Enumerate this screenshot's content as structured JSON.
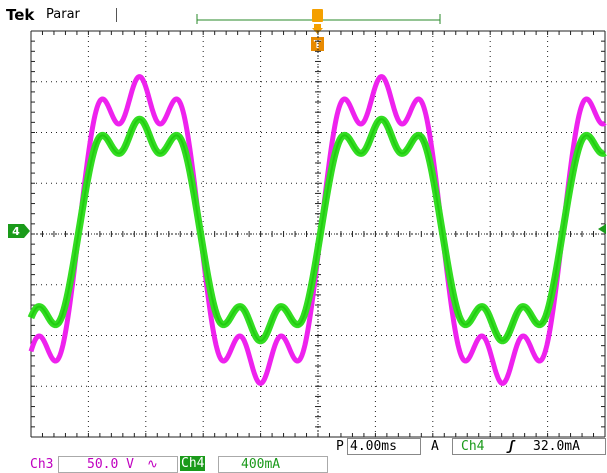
{
  "header": {
    "brand": "Tek",
    "status": "Parar"
  },
  "markers": {
    "ch4": "4",
    "trigger": "T"
  },
  "timebase": {
    "prefix": "P",
    "value": "4.00ms"
  },
  "trigger": {
    "mode": "A",
    "source": "Ch4",
    "slope_symbol": "ʃ",
    "level": "32.0mA"
  },
  "channels": [
    {
      "label": "Ch3",
      "scale": "50.0 V",
      "coupling": "∿",
      "color": "#c000c0"
    },
    {
      "label": "Ch4",
      "scale": "400mA",
      "color": "#1a9a1a"
    }
  ],
  "colors": {
    "ch3_trace": "#ee22ee",
    "ch4_trace": "#33dd22",
    "trigger_marker": "#e88a00",
    "grid": "#222222"
  }
}
